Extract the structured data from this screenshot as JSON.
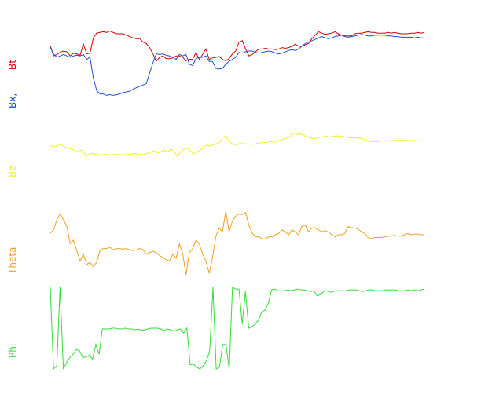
{
  "chart_data": {
    "type": "line",
    "panels": [
      {
        "labels": [
          {
            "text": "Bt",
            "color": "#d40000"
          },
          {
            "text": "Bx,",
            "color": "#1a4fd6"
          }
        ],
        "ylim": [
          0,
          1
        ],
        "series": [
          {
            "key": "Bt",
            "color": "#d40000",
            "values": [
              0.75,
              0.6,
              0.62,
              0.65,
              0.67,
              0.66,
              0.6,
              0.64,
              0.63,
              0.61,
              0.77,
              0.63,
              0.64,
              0.86,
              0.93,
              0.94,
              0.95,
              0.94,
              0.96,
              0.94,
              0.92,
              0.92,
              0.92,
              0.9,
              0.88,
              0.86,
              0.85,
              0.85,
              0.8,
              0.78,
              0.72,
              0.63,
              0.52,
              0.58,
              0.6,
              0.56,
              0.56,
              0.57,
              0.6,
              0.6,
              0.58,
              0.53,
              0.55,
              0.55,
              0.65,
              0.55,
              0.62,
              0.7,
              0.55,
              0.57,
              0.58,
              0.59,
              0.55,
              0.53,
              0.56,
              0.63,
              0.67,
              0.8,
              0.82,
              0.7,
              0.6,
              0.62,
              0.66,
              0.7,
              0.7,
              0.71,
              0.7,
              0.7,
              0.69,
              0.7,
              0.72,
              0.71,
              0.72,
              0.74,
              0.77,
              0.74,
              0.74,
              0.76,
              0.78,
              0.85,
              0.9,
              0.95,
              0.93,
              0.91,
              0.92,
              0.93,
              0.95,
              0.92,
              0.9,
              0.89,
              0.89,
              0.89,
              0.92,
              0.93,
              0.93,
              0.94,
              0.95,
              0.94,
              0.94,
              0.93,
              0.93,
              0.93,
              0.94,
              0.93,
              0.94,
              0.93,
              0.92,
              0.92,
              0.92,
              0.93,
              0.93,
              0.94,
              0.93,
              0.94
            ]
          },
          {
            "key": "Bx",
            "color": "#1a4fd6",
            "values": [
              0.72,
              0.63,
              0.58,
              0.6,
              0.62,
              0.6,
              0.58,
              0.6,
              0.61,
              0.6,
              0.62,
              0.55,
              0.58,
              0.28,
              0.1,
              0.05,
              0.05,
              0.03,
              0.04,
              0.03,
              0.04,
              0.05,
              0.07,
              0.08,
              0.09,
              0.12,
              0.14,
              0.16,
              0.18,
              0.2,
              0.35,
              0.5,
              0.63,
              0.62,
              0.63,
              0.61,
              0.6,
              0.58,
              0.55,
              0.62,
              0.6,
              0.62,
              0.48,
              0.46,
              0.56,
              0.58,
              0.58,
              0.6,
              0.52,
              0.52,
              0.42,
              0.41,
              0.42,
              0.48,
              0.52,
              0.55,
              0.58,
              0.65,
              0.64,
              0.66,
              0.67,
              0.67,
              0.65,
              0.64,
              0.65,
              0.66,
              0.67,
              0.66,
              0.64,
              0.63,
              0.64,
              0.66,
              0.68,
              0.69,
              0.68,
              0.7,
              0.74,
              0.78,
              0.8,
              0.82,
              0.84,
              0.86,
              0.88,
              0.86,
              0.85,
              0.86,
              0.88,
              0.89,
              0.9,
              0.88,
              0.87,
              0.88,
              0.89,
              0.9,
              0.91,
              0.9,
              0.89,
              0.89,
              0.9,
              0.9,
              0.9,
              0.9,
              0.89,
              0.89,
              0.88,
              0.88,
              0.87,
              0.87,
              0.87,
              0.87,
              0.86,
              0.87,
              0.86,
              0.86
            ]
          }
        ]
      },
      {
        "labels": [
          {
            "text": "Bz",
            "color": "#f0f020"
          }
        ],
        "ylim": [
          0,
          1
        ],
        "series": [
          {
            "key": "Bz",
            "color": "#f0f020",
            "values": [
              0.52,
              0.48,
              0.5,
              0.55,
              0.5,
              0.45,
              0.44,
              0.42,
              0.35,
              0.4,
              0.38,
              0.25,
              0.3,
              0.32,
              0.3,
              0.28,
              0.28,
              0.3,
              0.28,
              0.28,
              0.3,
              0.29,
              0.28,
              0.28,
              0.3,
              0.3,
              0.32,
              0.3,
              0.28,
              0.3,
              0.32,
              0.35,
              0.38,
              0.33,
              0.36,
              0.4,
              0.35,
              0.42,
              0.38,
              0.25,
              0.35,
              0.42,
              0.45,
              0.4,
              0.3,
              0.36,
              0.38,
              0.46,
              0.52,
              0.5,
              0.53,
              0.56,
              0.58,
              0.72,
              0.75,
              0.6,
              0.55,
              0.53,
              0.56,
              0.56,
              0.55,
              0.55,
              0.54,
              0.55,
              0.57,
              0.58,
              0.58,
              0.6,
              0.6,
              0.59,
              0.62,
              0.65,
              0.68,
              0.7,
              0.75,
              0.82,
              0.78,
              0.8,
              0.76,
              0.72,
              0.7,
              0.68,
              0.7,
              0.72,
              0.73,
              0.74,
              0.72,
              0.74,
              0.75,
              0.74,
              0.73,
              0.72,
              0.7,
              0.7,
              0.7,
              0.69,
              0.68,
              0.64,
              0.63,
              0.6,
              0.62,
              0.61,
              0.63,
              0.62,
              0.62,
              0.64,
              0.63,
              0.64,
              0.65,
              0.64,
              0.63,
              0.64,
              0.63,
              0.63,
              0.62,
              0.63
            ]
          }
        ]
      },
      {
        "labels": [
          {
            "text": "Theta",
            "color": "#f0a020"
          }
        ],
        "ylim": [
          0,
          1
        ],
        "series": [
          {
            "key": "Theta",
            "color": "#f0a020",
            "values": [
              0.6,
              0.65,
              0.8,
              0.88,
              0.8,
              0.7,
              0.45,
              0.5,
              0.35,
              0.2,
              0.3,
              0.15,
              0.18,
              0.12,
              0.18,
              0.35,
              0.38,
              0.38,
              0.4,
              0.36,
              0.38,
              0.38,
              0.37,
              0.38,
              0.36,
              0.35,
              0.36,
              0.38,
              0.36,
              0.3,
              0.32,
              0.34,
              0.32,
              0.28,
              0.25,
              0.22,
              0.2,
              0.3,
              0.24,
              0.45,
              0.3,
              0.0,
              0.32,
              0.38,
              0.5,
              0.45,
              0.3,
              0.2,
              0.02,
              0.25,
              0.55,
              0.68,
              0.62,
              0.92,
              0.62,
              0.78,
              0.85,
              0.88,
              0.87,
              0.9,
              0.72,
              0.6,
              0.55,
              0.55,
              0.52,
              0.52,
              0.55,
              0.55,
              0.58,
              0.6,
              0.65,
              0.62,
              0.58,
              0.65,
              0.62,
              0.58,
              0.7,
              0.72,
              0.62,
              0.68,
              0.68,
              0.65,
              0.62,
              0.64,
              0.62,
              0.58,
              0.55,
              0.58,
              0.58,
              0.6,
              0.7,
              0.68,
              0.68,
              0.66,
              0.62,
              0.6,
              0.54,
              0.52,
              0.54,
              0.54,
              0.54,
              0.55,
              0.56,
              0.56,
              0.57,
              0.56,
              0.56,
              0.58,
              0.6,
              0.58,
              0.59,
              0.59,
              0.58,
              0.58
            ]
          }
        ]
      },
      {
        "labels": [
          {
            "text": "Phi",
            "color": "#33dd33"
          }
        ],
        "ylim": [
          0,
          1
        ],
        "series": [
          {
            "key": "Phi",
            "color": "#33dd33",
            "values": [
              1.0,
              0.0,
              0.04,
              1.0,
              0.0,
              0.08,
              0.14,
              0.18,
              0.24,
              0.22,
              0.14,
              0.15,
              0.17,
              0.12,
              0.3,
              0.18,
              0.49,
              0.49,
              0.49,
              0.5,
              0.5,
              0.49,
              0.49,
              0.5,
              0.49,
              0.49,
              0.48,
              0.49,
              0.47,
              0.48,
              0.49,
              0.5,
              0.5,
              0.5,
              0.49,
              0.47,
              0.49,
              0.48,
              0.46,
              0.48,
              0.49,
              0.44,
              0.5,
              0.05,
              0.06,
              0.02,
              0.0,
              0.04,
              0.1,
              0.22,
              1.0,
              0.0,
              0.02,
              0.3,
              0.3,
              0.0,
              1.0,
              0.98,
              0.98,
              0.55,
              0.95,
              0.5,
              0.52,
              0.55,
              0.6,
              0.7,
              0.72,
              0.8,
              0.97,
              0.98,
              0.96,
              0.96,
              0.96,
              0.97,
              0.96,
              0.97,
              0.98,
              0.97,
              0.97,
              0.96,
              0.95,
              0.96,
              0.9,
              0.91,
              0.95,
              0.96,
              0.94,
              0.95,
              0.96,
              0.96,
              0.96,
              0.96,
              0.97,
              0.97,
              0.97,
              0.96,
              0.95,
              0.96,
              0.97,
              0.97,
              0.96,
              0.96,
              0.96,
              0.97,
              0.97,
              0.97,
              0.97,
              0.96,
              0.96,
              0.96,
              0.97,
              0.96,
              0.97,
              0.96,
              0.97,
              0.98
            ]
          }
        ]
      }
    ]
  }
}
